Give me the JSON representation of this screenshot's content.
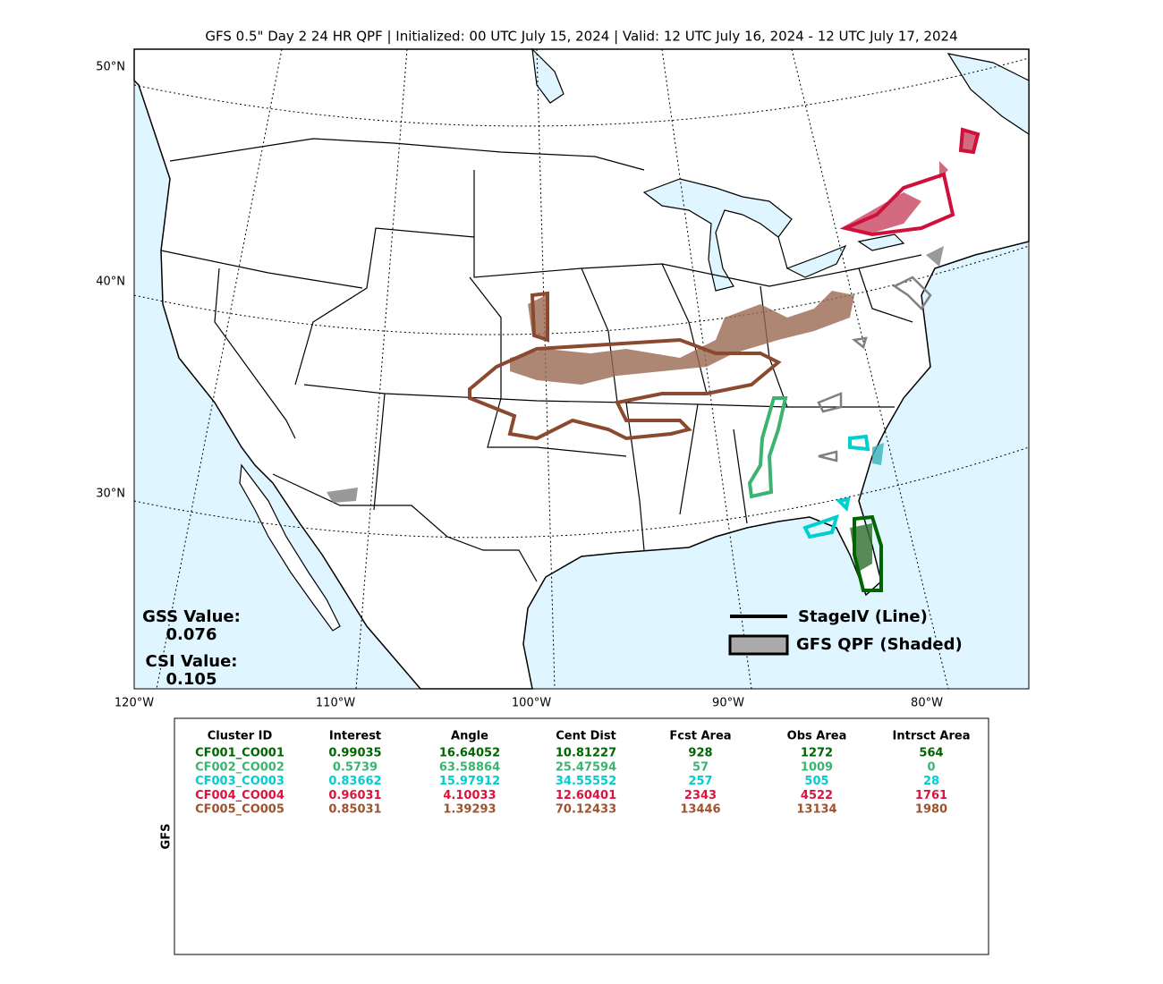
{
  "title": "GFS 0.5\" Day 2 24 HR QPF | Initialized: 00 UTC July 15, 2024 | Valid: 12 UTC July 16, 2024 - 12 UTC July 17, 2024",
  "map": {
    "lat_labels": [
      "50°N",
      "40°N",
      "30°N"
    ],
    "lon_labels": [
      "120°W",
      "110°W",
      "100°W",
      "90°W",
      "80°W"
    ],
    "stats": [
      {
        "label": "GSS Value:",
        "value": "0.076"
      },
      {
        "label": "CSI Value:",
        "value": "0.105"
      }
    ],
    "legend": [
      "StageIV (Line)",
      "GFS QPF (Shaded)"
    ]
  },
  "table": {
    "side_label": "GFS",
    "header": [
      "Cluster ID",
      "Interest",
      "Angle",
      "Cent Dist",
      "Fcst Area",
      "Obs Area",
      "Intrsct Area"
    ],
    "rows": [
      [
        "CF001_CO001",
        "0.99035",
        "16.64052",
        "10.81227",
        "928",
        "1272",
        "564"
      ],
      [
        "CF002_CO002",
        "0.5739",
        "63.58864",
        "25.47594",
        "57",
        "1009",
        "0"
      ],
      [
        "CF003_CO003",
        "0.83662",
        "15.97912",
        "34.55552",
        "257",
        "505",
        "28"
      ],
      [
        "CF004_CO004",
        "0.96031",
        "4.10033",
        "12.60401",
        "2343",
        "4522",
        "1761"
      ],
      [
        "CF005_CO005",
        "0.85031",
        "1.39293",
        "70.12433",
        "13446",
        "13134",
        "1980"
      ]
    ],
    "row_colors": [
      "#006400",
      "#3cb371",
      "#00ced1",
      "#dc143c",
      "#a0522d"
    ]
  }
}
